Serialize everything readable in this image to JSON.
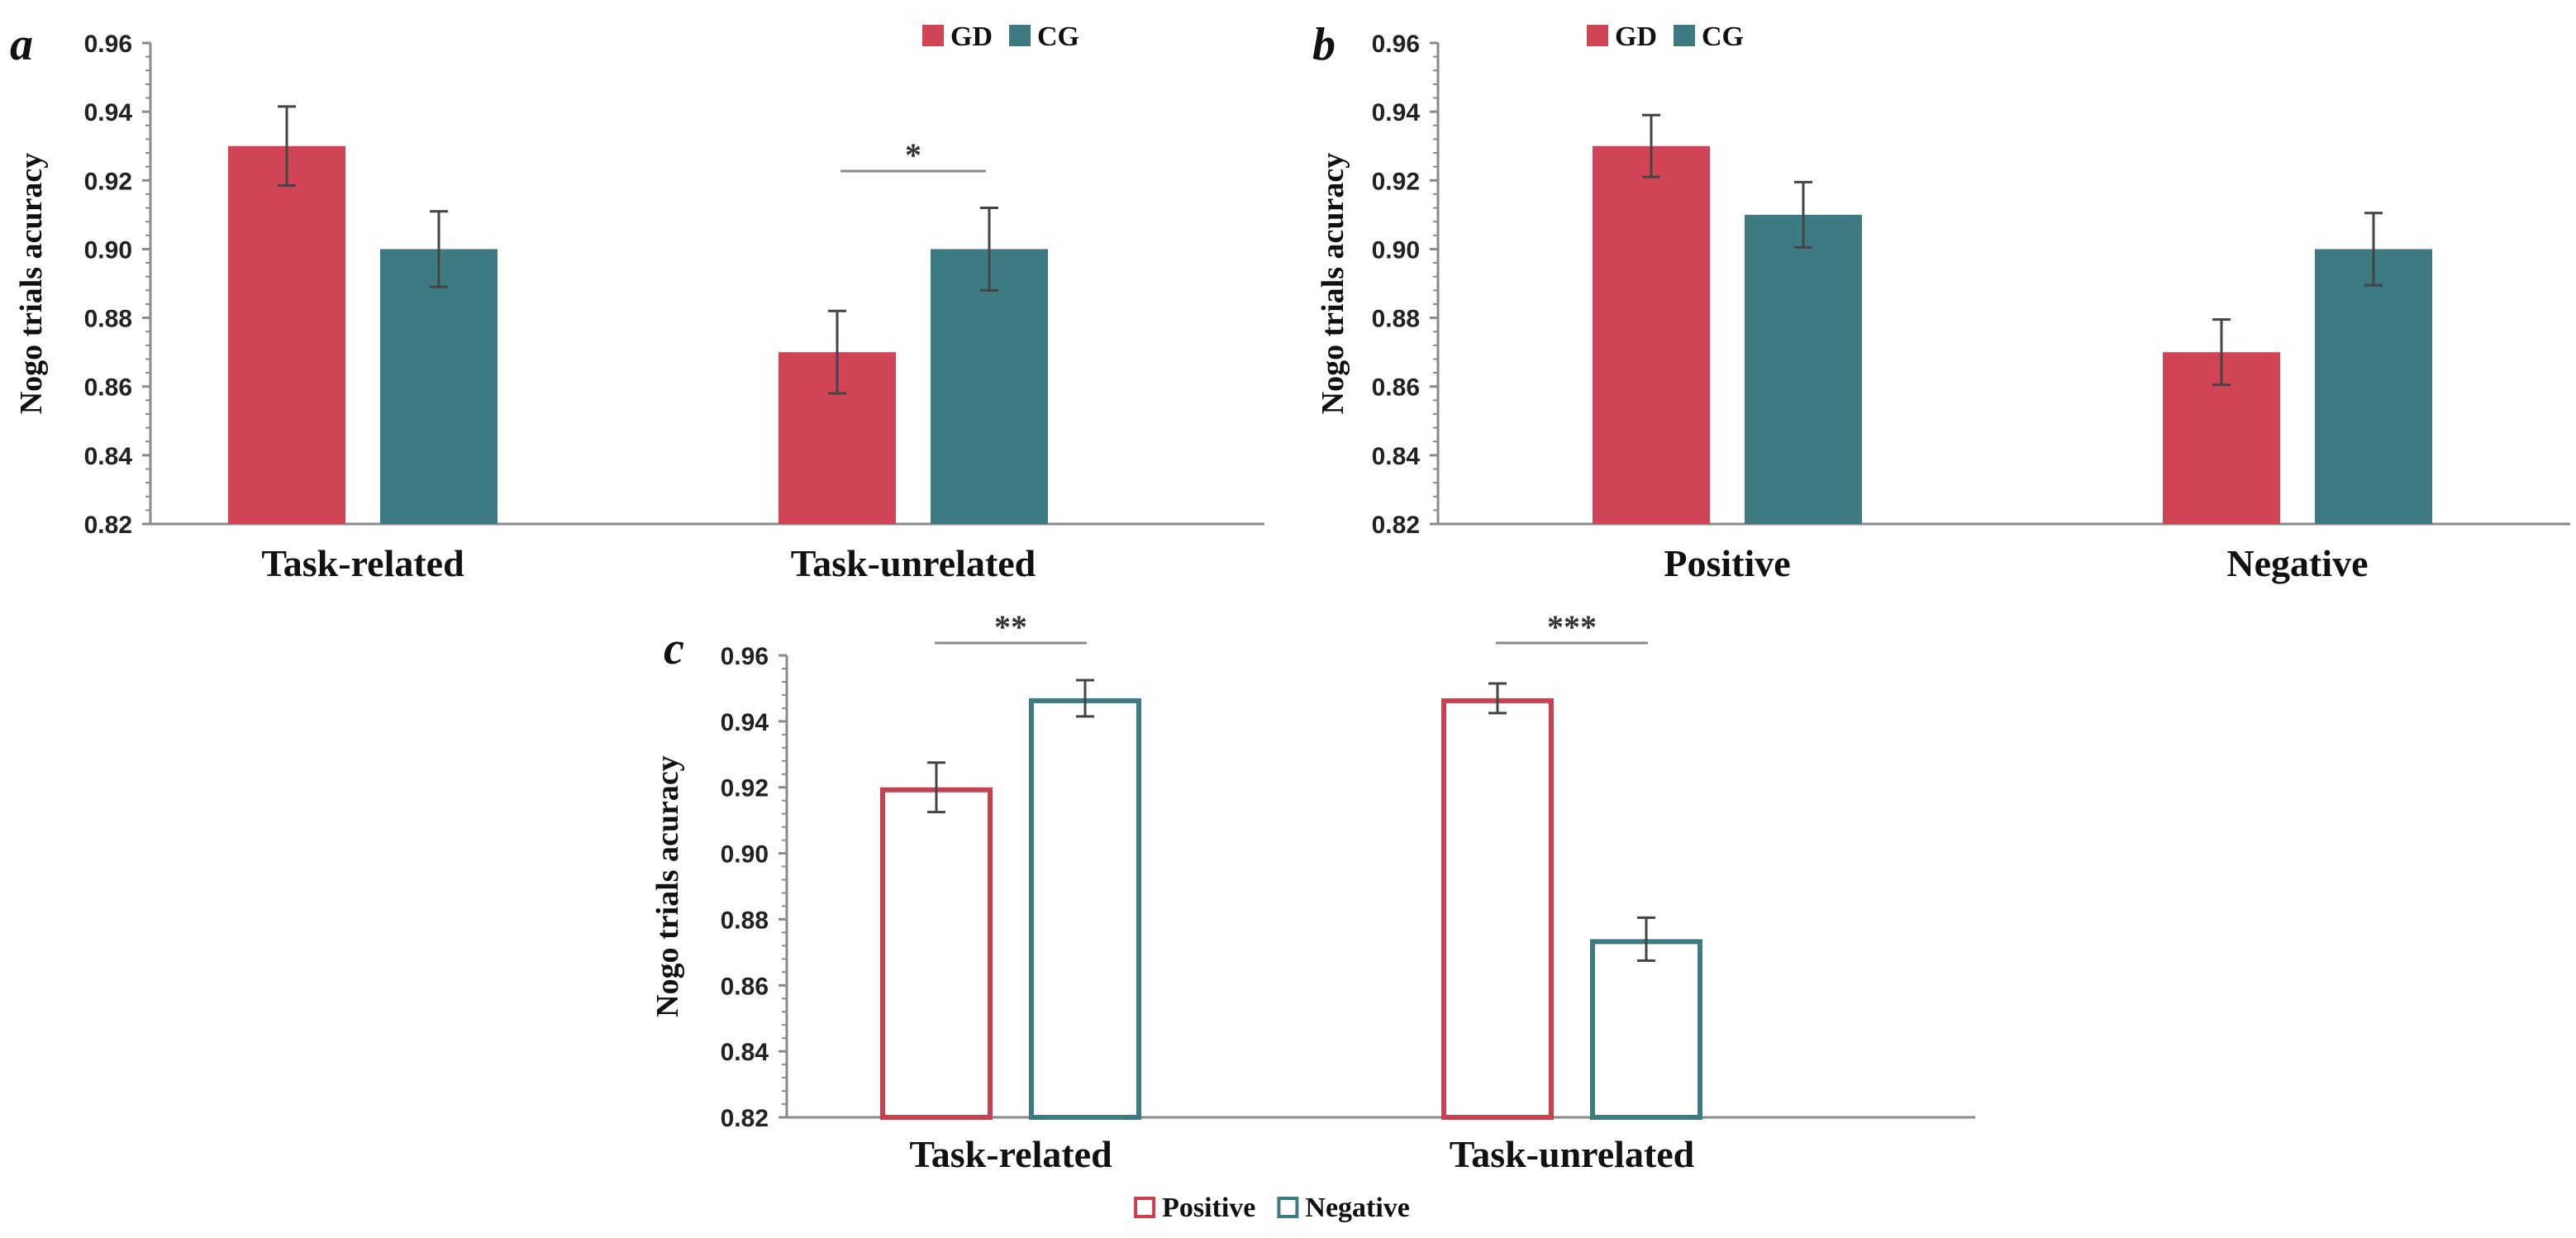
{
  "colors": {
    "GD": "#d04455",
    "CG": "#3e7a82",
    "Positive": "#c94050",
    "Negative": "#3e7a82"
  },
  "chart_data": [
    {
      "id": "a",
      "panel": "a",
      "type": "bar",
      "style": "filled",
      "ylabel": "Nogo trials acuracy",
      "ylim": [
        0.82,
        0.96
      ],
      "yticks": [
        "0.82",
        "0.84",
        "0.86",
        "0.88",
        "0.90",
        "0.92",
        "0.94",
        "0.96"
      ],
      "categories": [
        "Task-related",
        "Task-unrelated"
      ],
      "series": [
        {
          "name": "GD",
          "color": "#d04455",
          "values": [
            0.93,
            0.87
          ],
          "errors": [
            0.0115,
            0.012
          ]
        },
        {
          "name": "CG",
          "color": "#3e7a82",
          "values": [
            0.9,
            0.9
          ],
          "errors": [
            0.011,
            0.012
          ]
        }
      ],
      "significance": [
        {
          "category": 1,
          "label": "*"
        }
      ],
      "legend": [
        {
          "label": "GD",
          "color": "#d04455"
        },
        {
          "label": "CG",
          "color": "#3e7a82"
        }
      ],
      "legend_position": "top-right"
    },
    {
      "id": "b",
      "panel": "b",
      "type": "bar",
      "style": "filled",
      "ylabel": "Nogo trials acuracy",
      "ylim": [
        0.82,
        0.96
      ],
      "yticks": [
        "0.82",
        "0.84",
        "0.86",
        "0.88",
        "0.90",
        "0.92",
        "0.94",
        "0.96"
      ],
      "categories": [
        "Positive",
        "Negative"
      ],
      "series": [
        {
          "name": "GD",
          "color": "#d04455",
          "values": [
            0.93,
            0.87
          ],
          "errors": [
            0.009,
            0.0095
          ]
        },
        {
          "name": "CG",
          "color": "#3e7a82",
          "values": [
            0.91,
            0.9
          ],
          "errors": [
            0.0095,
            0.0105
          ]
        }
      ],
      "significance": [],
      "legend": [
        {
          "label": "GD",
          "color": "#d04455"
        },
        {
          "label": "CG",
          "color": "#3e7a82"
        }
      ],
      "legend_position": "top-left"
    },
    {
      "id": "c",
      "panel": "c",
      "type": "bar",
      "style": "outline",
      "ylabel": "Nogo trials acuracy",
      "ylim": [
        0.82,
        0.96
      ],
      "yticks": [
        "0.82",
        "0.84",
        "0.86",
        "0.88",
        "0.90",
        "0.92",
        "0.94",
        "0.96"
      ],
      "categories": [
        "Task-related",
        "Task-unrelated"
      ],
      "series": [
        {
          "name": "Positive",
          "color": "#c94050",
          "values": [
            0.92,
            0.947
          ],
          "errors": [
            0.0075,
            0.0045
          ]
        },
        {
          "name": "Negative",
          "color": "#3e7a82",
          "values": [
            0.947,
            0.874
          ],
          "errors": [
            0.0055,
            0.0065
          ]
        }
      ],
      "significance": [
        {
          "category": 0,
          "label": "**"
        },
        {
          "category": 1,
          "label": "***"
        }
      ],
      "legend": [
        {
          "label": "Positive",
          "color": "#c94050"
        },
        {
          "label": "Negative",
          "color": "#3e7a82"
        }
      ],
      "legend_position": "bottom-center"
    }
  ]
}
